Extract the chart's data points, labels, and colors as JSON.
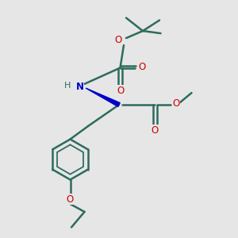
{
  "bg_color": "#e6e6e6",
  "bond_color": "#2d6b5e",
  "bond_width": 1.8,
  "o_color": "#cc0000",
  "n_color": "#0000cc",
  "figsize": [
    3.0,
    3.0
  ],
  "dpi": 100,
  "xlim": [
    0,
    10
  ],
  "ylim": [
    0,
    10
  ]
}
